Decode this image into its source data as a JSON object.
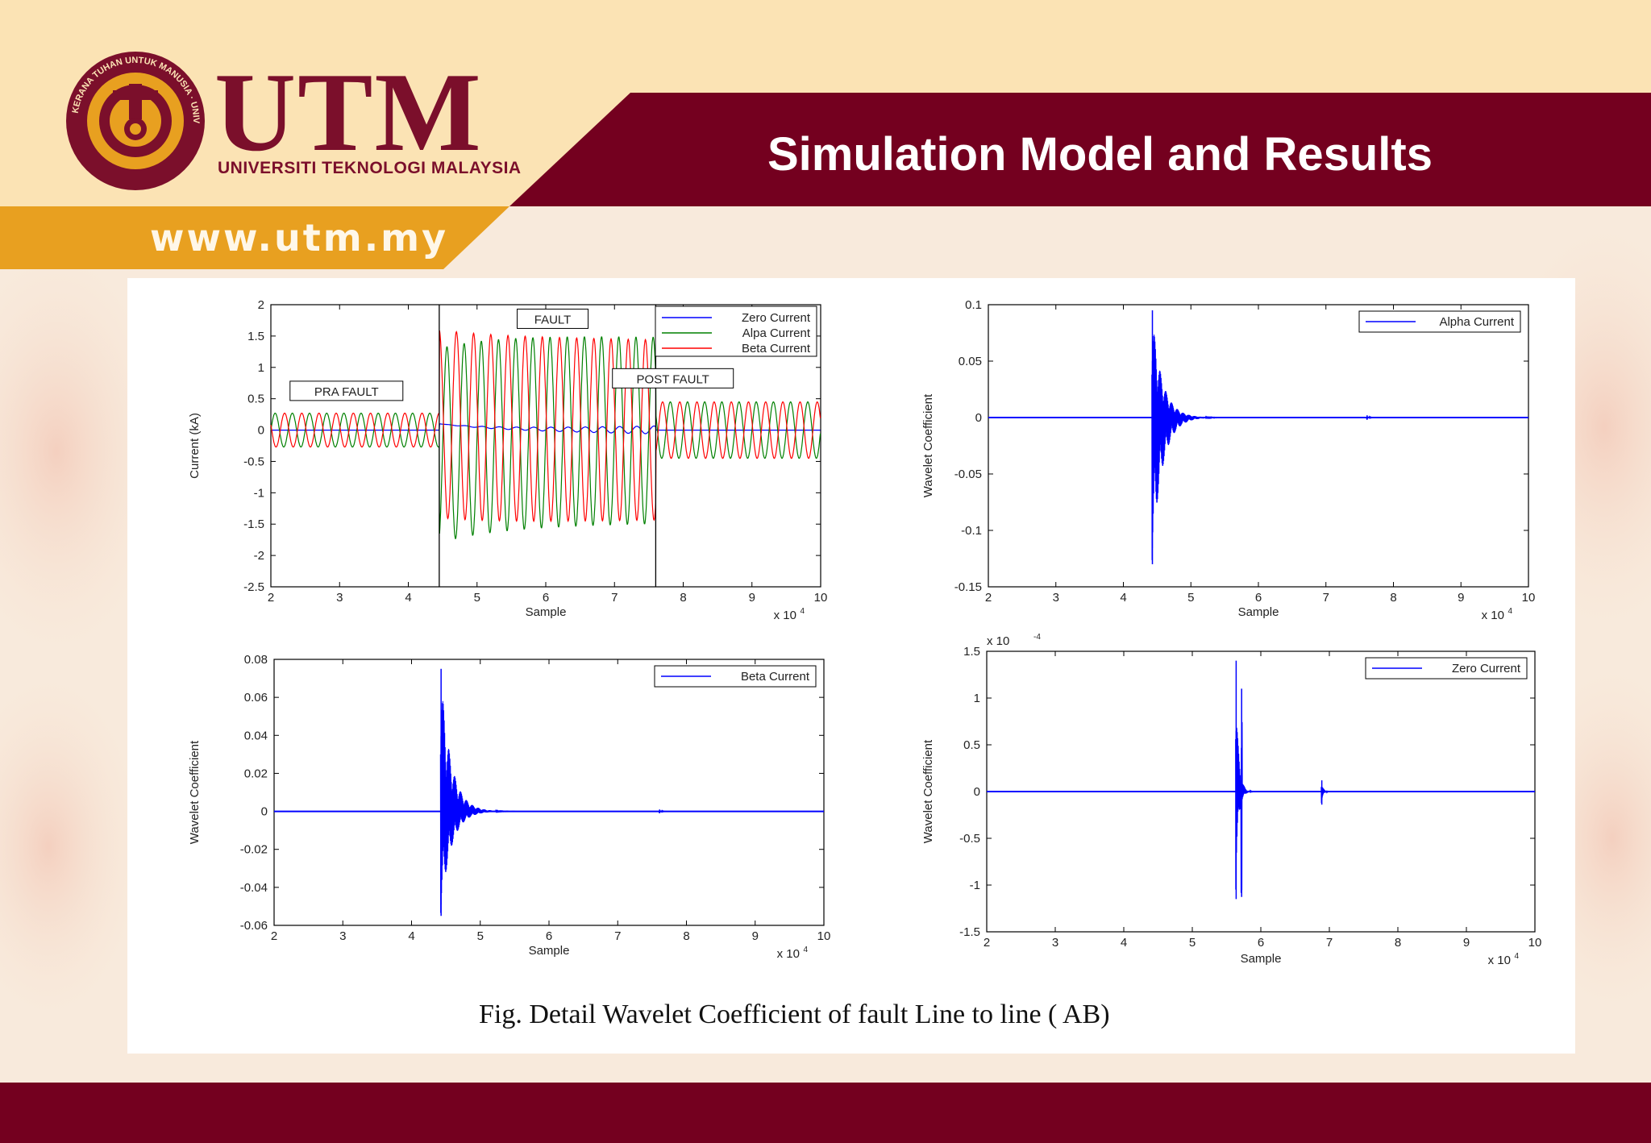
{
  "header": {
    "title": "Simulation Model and  Results",
    "logo_text": "UTM",
    "university": "UNIVERSITI TEKNOLOGI MALAYSIA",
    "seal_text": "KERANA TUHAN UNTUK MANUSIA · UNIVERSITI TEKNOLOGI MALAYSIA",
    "website": "www.utm.my"
  },
  "caption": "Fig. Detail Wavelet Coefficient of  fault Line to line ( AB)",
  "colors": {
    "maroon": "#74001f",
    "gold": "#e8a020",
    "cream": "#fbe3b4",
    "blue": "#0000ff",
    "green": "#008000",
    "red": "#ff0000"
  },
  "chart_data": [
    {
      "type": "line",
      "xlabel": "Sample",
      "ylabel": "Current (kA)",
      "xlim": [
        2,
        10
      ],
      "ylim": [
        -2.5,
        2
      ],
      "xticks": [
        "2",
        "3",
        "4",
        "5",
        "6",
        "7",
        "8",
        "9",
        "10"
      ],
      "yticks": [
        "-2.5",
        "-2",
        "-1.5",
        "-1",
        "-0.5",
        "0",
        "0.5",
        "1",
        "1.5",
        "2"
      ],
      "x_multiplier": "x 10",
      "x_exponent": "4",
      "annotations": [
        "PRA FAULT",
        "FAULT",
        "POST FAULT"
      ],
      "vlines": [
        4.45,
        7.6
      ],
      "legend": "top-right",
      "series": [
        {
          "name": "Zero Current",
          "color": "#0000ff",
          "pre_amplitude": 0,
          "fault_amplitude": 0,
          "post_amplitude": 0
        },
        {
          "name": "Alpa Current",
          "color": "#008000",
          "pre_amplitude": 0.27,
          "fault_amplitude": 1.55,
          "post_amplitude": 0.45
        },
        {
          "name": "Beta Current",
          "color": "#ff0000",
          "pre_amplitude": 0.27,
          "fault_amplitude": 1.5,
          "post_amplitude": 0.45
        }
      ]
    },
    {
      "type": "line",
      "xlabel": "Sample",
      "ylabel": "Wavelet Coefficient",
      "xlim": [
        2,
        10
      ],
      "ylim": [
        -0.15,
        0.1
      ],
      "xticks": [
        "2",
        "3",
        "4",
        "5",
        "6",
        "7",
        "8",
        "9",
        "10"
      ],
      "yticks": [
        "-0.15",
        "-0.1",
        "-0.05",
        "0",
        "0.05",
        "0.1"
      ],
      "x_multiplier": "x 10",
      "x_exponent": "4",
      "legend": "top-right",
      "series": [
        {
          "name": "Alpha Current",
          "color": "#0000ff",
          "bursts": [
            {
              "x": 4.42,
              "max": 0.095,
              "min": -0.13,
              "decay": 0.45
            },
            {
              "x": 7.6,
              "max": 0.002,
              "min": -0.002,
              "decay": 0.1
            }
          ]
        }
      ]
    },
    {
      "type": "line",
      "xlabel": "Sample",
      "ylabel": "Wavelet Coefficient",
      "xlim": [
        2,
        10
      ],
      "ylim": [
        -0.06,
        0.08
      ],
      "xticks": [
        "2",
        "3",
        "4",
        "5",
        "6",
        "7",
        "8",
        "9",
        "10"
      ],
      "yticks": [
        "-0.06",
        "-0.04",
        "-0.02",
        "0",
        "0.02",
        "0.04",
        "0.06",
        "0.08"
      ],
      "x_multiplier": "x 10",
      "x_exponent": "4",
      "legend": "top-right",
      "series": [
        {
          "name": "Beta Current",
          "color": "#0000ff",
          "bursts": [
            {
              "x": 4.42,
              "max": 0.075,
              "min": -0.055,
              "decay": 0.45
            },
            {
              "x": 7.6,
              "max": 0.001,
              "min": -0.001,
              "decay": 0.1
            }
          ]
        }
      ]
    },
    {
      "type": "line",
      "xlabel": "Sample",
      "ylabel": "Wavelet Coefficient",
      "xlim": [
        2,
        10
      ],
      "ylim": [
        -1.5,
        1.5
      ],
      "xticks": [
        "2",
        "3",
        "4",
        "5",
        "6",
        "7",
        "8",
        "9",
        "10"
      ],
      "yticks": [
        "-1.5",
        "-1",
        "-0.5",
        "0",
        "0.5",
        "1",
        "1.5"
      ],
      "y_multiplier": "x 10",
      "y_exponent": "-4",
      "x_multiplier": "x 10",
      "x_exponent": "4",
      "legend": "top-right",
      "series": [
        {
          "name": "Zero Current",
          "color": "#0000ff",
          "bursts": [
            {
              "x": 5.63,
              "max": 1.4,
              "min": -1.15,
              "decay": 0.12,
              "second": 1.1
            },
            {
              "x": 6.88,
              "max": 0.12,
              "min": -0.14,
              "decay": 0.08
            }
          ]
        }
      ]
    }
  ]
}
